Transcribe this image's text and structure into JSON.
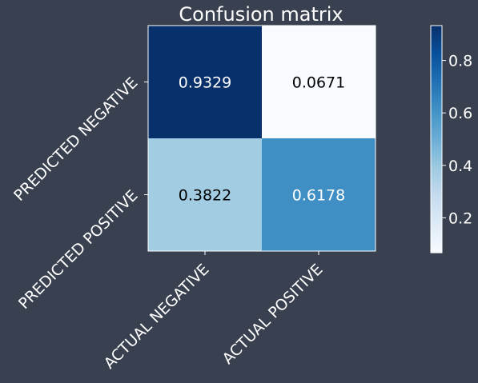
{
  "chart_data": {
    "type": "heatmap",
    "title": "Confusion matrix",
    "xlabel": "",
    "ylabel": "",
    "x_categories": [
      "ACTUAL NEGATIVE",
      "ACTUAL POSITIVE"
    ],
    "y_categories": [
      "PREDICTED NEGATIVE",
      "PREDICTED POSITIVE"
    ],
    "values": [
      [
        0.9329,
        0.0671
      ],
      [
        0.3822,
        0.6178
      ]
    ],
    "cell_labels": [
      [
        "0.9329",
        "0.0671"
      ],
      [
        "0.3822",
        "0.6178"
      ]
    ],
    "colormap": "Blues",
    "colorbar": {
      "min": 0.0671,
      "max": 0.9329,
      "ticks": [
        0.2,
        0.4,
        0.6,
        0.8
      ],
      "tick_labels": [
        "0.2",
        "0.4",
        "0.6",
        "0.8"
      ]
    },
    "colors": {
      "background": "#39404f",
      "text": "#ffffff",
      "cell_text_dark": "#ffffff",
      "cell_text_light": "#000000"
    }
  }
}
